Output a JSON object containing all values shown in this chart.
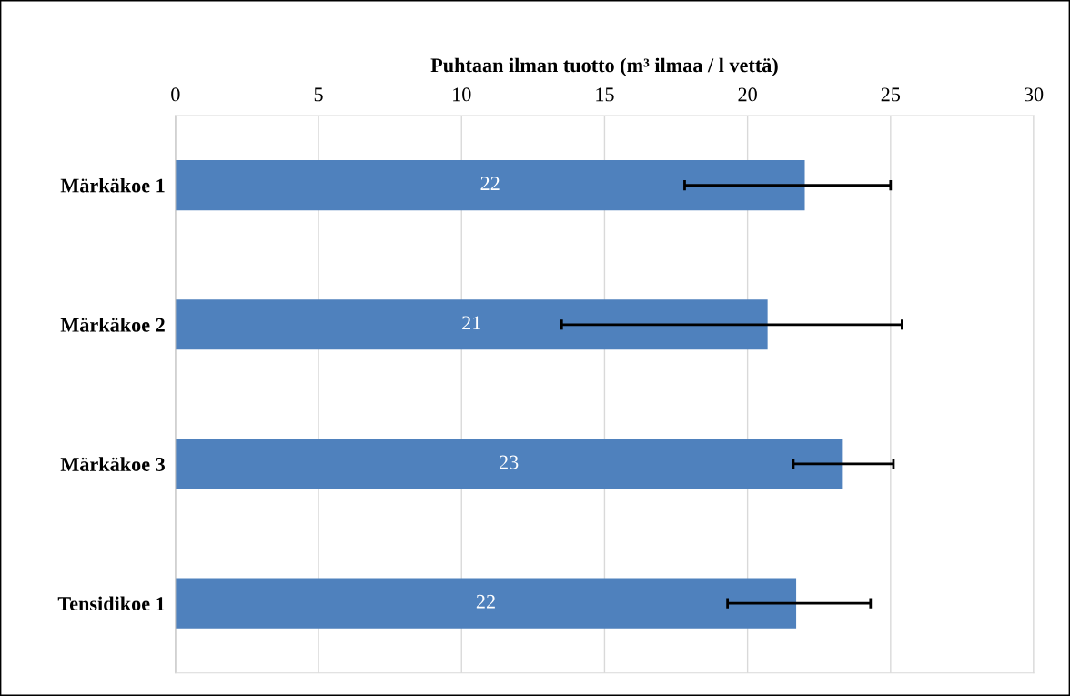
{
  "chart_data": {
    "type": "bar",
    "orientation": "horizontal",
    "xlabel": "Puhtaan ilman tuotto (m³ ilmaa / l vettä)",
    "categories": [
      "Märkäkoe 1",
      "Märkäkoe 2",
      "Märkäkoe 3",
      "Tensidikoe 1"
    ],
    "values": [
      22.0,
      20.7,
      23.3,
      21.7
    ],
    "errors": [
      [
        17.8,
        25.0
      ],
      [
        13.5,
        25.4
      ],
      [
        21.6,
        25.1
      ],
      [
        19.3,
        24.3
      ]
    ],
    "value_labels": [
      "22",
      "21",
      "23",
      "22"
    ],
    "color": "#4f81bd",
    "xlim": [
      0,
      30
    ],
    "xticks": [
      0,
      5,
      10,
      15,
      20,
      25,
      30
    ],
    "grid": "x",
    "legend": false
  }
}
